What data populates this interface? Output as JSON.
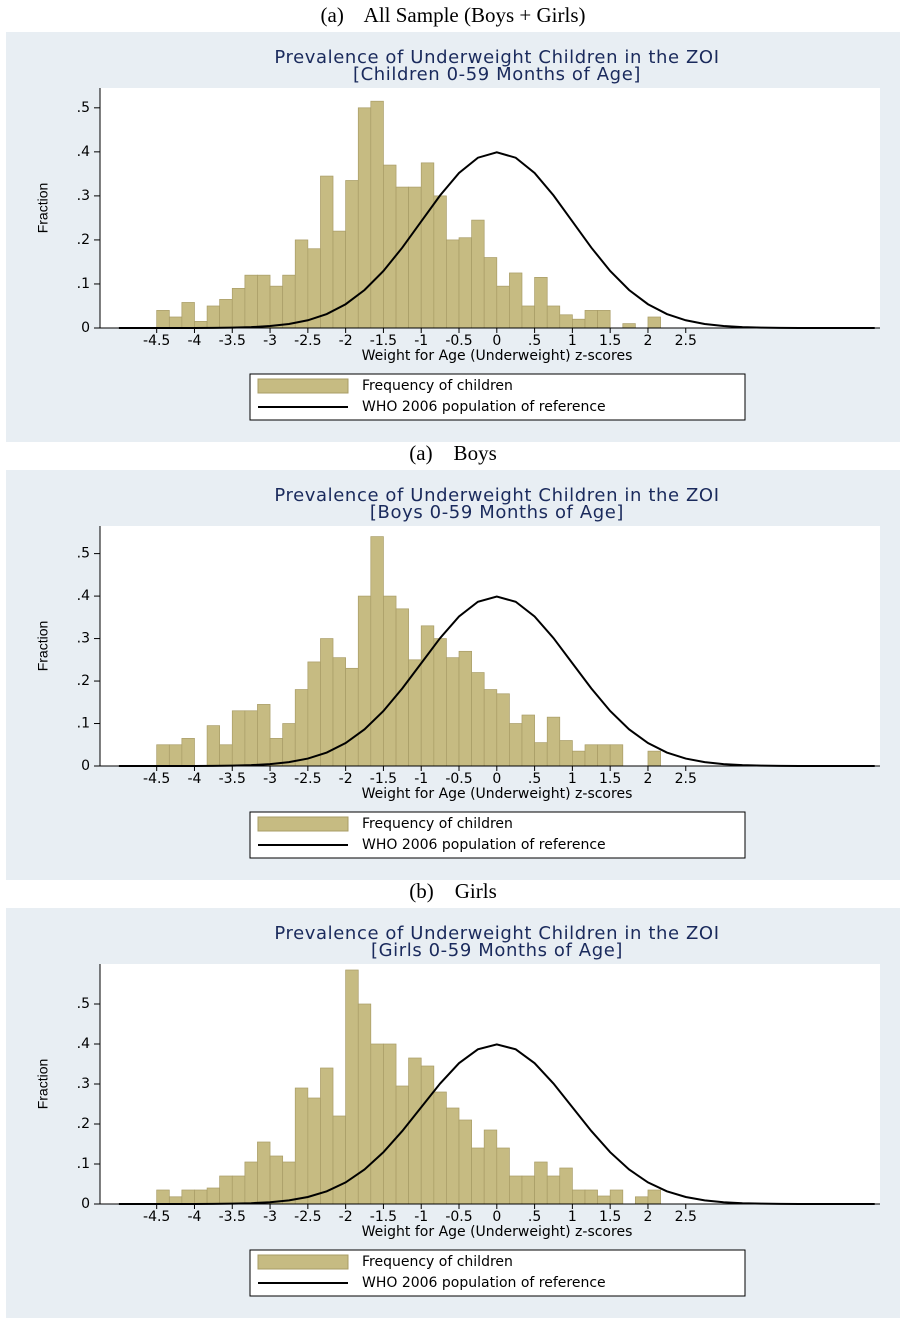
{
  "captions": [
    "(a)    All Sample (Boys + Girls)",
    "(a)    Boys",
    "(b)    Girls"
  ],
  "chart_data": [
    {
      "type": "histogram",
      "title": "Prevalence of Underweight Children in the ZOI",
      "subtitle": "[Children 0-59 Months of Age]",
      "xlabel": "Weight for Age (Underweight) z-scores",
      "ylabel": "Fraction",
      "xlim": [
        -5.25,
        5.07
      ],
      "ylim": [
        0,
        0.545
      ],
      "xticks": [
        -4.5,
        -4,
        -3.5,
        -3,
        -2.5,
        -2,
        -1.5,
        -1,
        -0.5,
        0,
        {
          "value": 0.5,
          "label": ".5"
        },
        1,
        1.5,
        2,
        2.5
      ],
      "yticks": [
        0,
        {
          "value": 0.1,
          "label": ".1"
        },
        {
          "value": 0.2,
          "label": ".2"
        },
        {
          "value": 0.3,
          "label": ".3"
        },
        {
          "value": 0.4,
          "label": ".4"
        },
        {
          "value": 0.5,
          "label": ".5"
        }
      ],
      "grid": false,
      "series": [
        {
          "name": "Frequency of children",
          "color": "#c6bb82",
          "bins": [
            -4.5,
            -4.333,
            -4.167,
            -4,
            -3.833,
            -3.667,
            -3.5,
            -3.333,
            -3.167,
            -3,
            -2.833,
            -2.667,
            -2.5,
            -2.333,
            -2.167,
            -2,
            -1.833,
            -1.667,
            -1.5,
            -1.333,
            -1.167,
            -1,
            -0.833,
            -0.667,
            -0.5,
            -0.333,
            -0.167,
            0,
            0.167,
            0.333,
            0.5,
            0.667,
            0.833,
            1,
            1.167,
            1.333,
            1.5,
            1.667,
            1.833,
            2,
            2.167
          ],
          "values": [
            0.04,
            0.025,
            0.058,
            0.015,
            0.05,
            0.065,
            0.09,
            0.12,
            0.12,
            0.095,
            0.12,
            0.2,
            0.18,
            0.345,
            0.22,
            0.335,
            0.5,
            0.515,
            0.37,
            0.32,
            0.32,
            0.375,
            0.3,
            0.2,
            0.205,
            0.245,
            0.16,
            0.095,
            0.125,
            0.05,
            0.115,
            0.05,
            0.03,
            0.02,
            0.04,
            0.04,
            0,
            0.01,
            0,
            0.025
          ]
        },
        {
          "name": "WHO 2006 population of reference",
          "type": "line",
          "color": "#000000",
          "x": [
            -5,
            -4.75,
            -4.5,
            -4.25,
            -4,
            -3.75,
            -3.5,
            -3.25,
            -3,
            -2.75,
            -2.5,
            -2.25,
            -2,
            -1.75,
            -1.5,
            -1.25,
            -1,
            -0.75,
            -0.5,
            -0.25,
            0,
            0.25,
            0.5,
            0.75,
            1,
            1.25,
            1.5,
            1.75,
            2,
            2.25,
            2.5,
            2.75,
            3,
            3.25,
            3.5,
            3.75,
            4,
            4.25,
            4.5,
            4.75,
            5
          ],
          "values": [
            1.5e-06,
            5e-06,
            1.6e-05,
            4.9e-05,
            0.000134,
            0.000353,
            0.000873,
            0.00203,
            0.00443,
            0.00909,
            0.01753,
            0.03174,
            0.05399,
            0.08628,
            0.12952,
            0.18265,
            0.24197,
            0.30114,
            0.35207,
            0.38667,
            0.39894,
            0.38667,
            0.35207,
            0.30114,
            0.24197,
            0.18265,
            0.12952,
            0.08628,
            0.05399,
            0.03174,
            0.01753,
            0.00909,
            0.00443,
            0.00203,
            0.000873,
            0.000353,
            0.000134,
            4.9e-05,
            1.6e-05,
            5e-06,
            1.5e-06
          ]
        }
      ]
    },
    {
      "type": "histogram",
      "title": "Prevalence of Underweight Children in the ZOI",
      "subtitle": "[Boys 0-59 Months of Age]",
      "xlabel": "Weight for Age (Underweight) z-scores",
      "ylabel": "Fraction",
      "xlim": [
        -5.25,
        5.07
      ],
      "ylim": [
        0,
        0.565
      ],
      "xticks": [
        -4.5,
        -4,
        -3.5,
        -3,
        -2.5,
        -2,
        -1.5,
        -1,
        -0.5,
        0,
        {
          "value": 0.5,
          "label": ".5"
        },
        1,
        1.5,
        2,
        2.5
      ],
      "yticks": [
        0,
        {
          "value": 0.1,
          "label": ".1"
        },
        {
          "value": 0.2,
          "label": ".2"
        },
        {
          "value": 0.3,
          "label": ".3"
        },
        {
          "value": 0.4,
          "label": ".4"
        },
        {
          "value": 0.5,
          "label": ".5"
        }
      ],
      "grid": false,
      "series": [
        {
          "name": "Frequency of children",
          "color": "#c6bb82",
          "bins": [
            -4.5,
            -4.333,
            -4.167,
            -4,
            -3.833,
            -3.667,
            -3.5,
            -3.333,
            -3.167,
            -3,
            -2.833,
            -2.667,
            -2.5,
            -2.333,
            -2.167,
            -2,
            -1.833,
            -1.667,
            -1.5,
            -1.333,
            -1.167,
            -1,
            -0.833,
            -0.667,
            -0.5,
            -0.333,
            -0.167,
            0,
            0.167,
            0.333,
            0.5,
            0.667,
            0.833,
            1,
            1.167,
            1.333,
            1.5,
            1.667,
            1.833,
            2,
            2.167
          ],
          "values": [
            0.05,
            0.05,
            0.065,
            0,
            0.095,
            0.05,
            0.13,
            0.13,
            0.145,
            0.065,
            0.1,
            0.18,
            0.245,
            0.3,
            0.255,
            0.23,
            0.4,
            0.54,
            0.4,
            0.37,
            0.25,
            0.33,
            0.3,
            0.255,
            0.27,
            0.22,
            0.18,
            0.17,
            0.1,
            0.12,
            0.055,
            0.115,
            0.06,
            0.035,
            0.05,
            0.05,
            0.05,
            0,
            0,
            0.035
          ]
        },
        {
          "name": "WHO 2006 population of reference",
          "type": "line",
          "color": "#000000",
          "x": [
            -5,
            -4.75,
            -4.5,
            -4.25,
            -4,
            -3.75,
            -3.5,
            -3.25,
            -3,
            -2.75,
            -2.5,
            -2.25,
            -2,
            -1.75,
            -1.5,
            -1.25,
            -1,
            -0.75,
            -0.5,
            -0.25,
            0,
            0.25,
            0.5,
            0.75,
            1,
            1.25,
            1.5,
            1.75,
            2,
            2.25,
            2.5,
            2.75,
            3,
            3.25,
            3.5,
            3.75,
            4,
            4.25,
            4.5,
            4.75,
            5
          ],
          "values": [
            1.5e-06,
            5e-06,
            1.6e-05,
            4.9e-05,
            0.000134,
            0.000353,
            0.000873,
            0.00203,
            0.00443,
            0.00909,
            0.01753,
            0.03174,
            0.05399,
            0.08628,
            0.12952,
            0.18265,
            0.24197,
            0.30114,
            0.35207,
            0.38667,
            0.39894,
            0.38667,
            0.35207,
            0.30114,
            0.24197,
            0.18265,
            0.12952,
            0.08628,
            0.05399,
            0.03174,
            0.01753,
            0.00909,
            0.00443,
            0.00203,
            0.000873,
            0.000353,
            0.000134,
            4.9e-05,
            1.6e-05,
            5e-06,
            1.5e-06
          ]
        }
      ]
    },
    {
      "type": "histogram",
      "title": "Prevalence of Underweight Children in the ZOI",
      "subtitle": "[Girls 0-59 Months of Age]",
      "xlabel": "Weight for Age (Underweight) z-scores",
      "ylabel": "Fraction",
      "xlim": [
        -5.25,
        5.07
      ],
      "ylim": [
        0,
        0.6
      ],
      "xticks": [
        -4.5,
        -4,
        -3.5,
        -3,
        -2.5,
        -2,
        -1.5,
        -1,
        -0.5,
        0,
        {
          "value": 0.5,
          "label": ".5"
        },
        1,
        1.5,
        2,
        2.5
      ],
      "yticks": [
        0,
        {
          "value": 0.1,
          "label": ".1"
        },
        {
          "value": 0.2,
          "label": ".2"
        },
        {
          "value": 0.3,
          "label": ".3"
        },
        {
          "value": 0.4,
          "label": ".4"
        },
        {
          "value": 0.5,
          "label": ".5"
        }
      ],
      "grid": false,
      "series": [
        {
          "name": "Frequency of children",
          "color": "#c6bb82",
          "bins": [
            -4.5,
            -4.333,
            -4.167,
            -4,
            -3.833,
            -3.667,
            -3.5,
            -3.333,
            -3.167,
            -3,
            -2.833,
            -2.667,
            -2.5,
            -2.333,
            -2.167,
            -2,
            -1.833,
            -1.667,
            -1.5,
            -1.333,
            -1.167,
            -1,
            -0.833,
            -0.667,
            -0.5,
            -0.333,
            -0.167,
            0,
            0.167,
            0.333,
            0.5,
            0.667,
            0.833,
            1,
            1.167,
            1.333,
            1.5,
            1.667,
            1.833,
            2,
            2.167
          ],
          "values": [
            0.035,
            0.018,
            0.035,
            0.035,
            0.04,
            0.07,
            0.07,
            0.105,
            0.155,
            0.12,
            0.105,
            0.29,
            0.265,
            0.34,
            0.22,
            0.585,
            0.5,
            0.4,
            0.4,
            0.295,
            0.365,
            0.345,
            0.28,
            0.24,
            0.21,
            0.14,
            0.185,
            0.14,
            0.07,
            0.07,
            0.105,
            0.07,
            0.09,
            0.035,
            0.035,
            0.02,
            0.035,
            0,
            0.018,
            0.035
          ]
        },
        {
          "name": "WHO 2006 population of reference",
          "type": "line",
          "color": "#000000",
          "x": [
            -5,
            -4.75,
            -4.5,
            -4.25,
            -4,
            -3.75,
            -3.5,
            -3.25,
            -3,
            -2.75,
            -2.5,
            -2.25,
            -2,
            -1.75,
            -1.5,
            -1.25,
            -1,
            -0.75,
            -0.5,
            -0.25,
            0,
            0.25,
            0.5,
            0.75,
            1,
            1.25,
            1.5,
            1.75,
            2,
            2.25,
            2.5,
            2.75,
            3,
            3.25,
            3.5,
            3.75,
            4,
            4.25,
            4.5,
            4.75,
            5
          ],
          "values": [
            1.5e-06,
            5e-06,
            1.6e-05,
            4.9e-05,
            0.000134,
            0.000353,
            0.000873,
            0.00203,
            0.00443,
            0.00909,
            0.01753,
            0.03174,
            0.05399,
            0.08628,
            0.12952,
            0.18265,
            0.24197,
            0.30114,
            0.35207,
            0.38667,
            0.39894,
            0.38667,
            0.35207,
            0.30114,
            0.24197,
            0.18265,
            0.12952,
            0.08628,
            0.05399,
            0.03174,
            0.01753,
            0.00909,
            0.00443,
            0.00203,
            0.000873,
            0.000353,
            0.000134,
            4.9e-05,
            1.6e-05,
            5e-06,
            1.5e-06
          ]
        }
      ]
    }
  ]
}
